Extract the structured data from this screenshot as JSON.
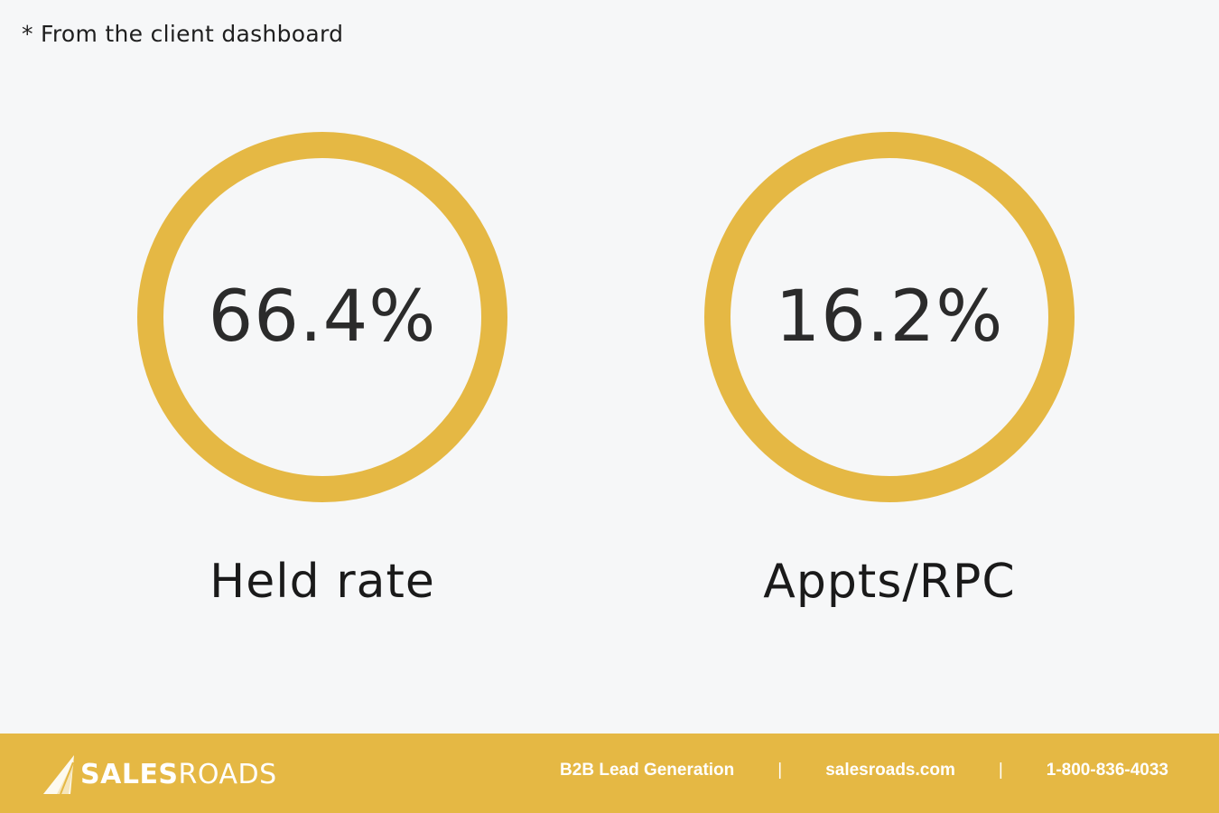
{
  "footnote": "* From the client dashboard",
  "stats": [
    {
      "value": "66.4%",
      "label": "Held rate"
    },
    {
      "value": "16.2%",
      "label": "Appts/RPC"
    }
  ],
  "footer": {
    "logo": {
      "bold": "SALES",
      "light": "ROADS",
      "icon": "sail-icon"
    },
    "tagline": "B2B Lead Generation",
    "separator": "|",
    "website": "salesroads.com",
    "phone": "1-800-836-4033"
  },
  "colors": {
    "accent": "#e5b844",
    "background": "#f6f7f8",
    "text": "#222222",
    "footer_text": "#ffffff"
  }
}
